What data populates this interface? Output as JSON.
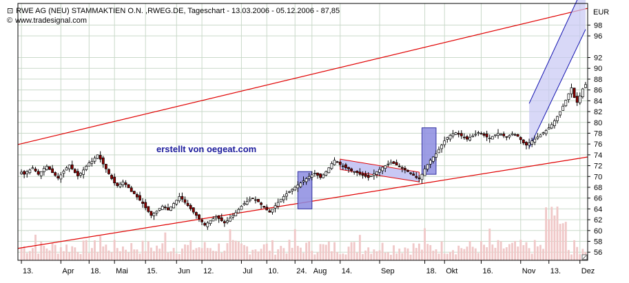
{
  "header": {
    "title": "RWE AG (NEU) STAMMAKTIEN O.N. ,RWEG.DE, Tageschart - 13.03.2006 - 05.12.2006 - 87,85",
    "source": "www.tradesignal.com",
    "title_icon": "square-chart-icon",
    "source_icon": "copyright-icon"
  },
  "annotation": "erstellt von oegeat.com",
  "colors": {
    "up_candle": "#ffffff",
    "down_candle": "#8b0000",
    "trend_line": "#e00000",
    "channel_line": "#1010b0",
    "channel_fill": "#c8c8f4",
    "box_fill": "#8c8ce0",
    "volume": "#f0c8c8",
    "grid": "#c9d9c9"
  },
  "chart_data": {
    "type": "candlestick",
    "currency": "EUR",
    "y_ticks": [
      56,
      58,
      60,
      62,
      64,
      66,
      68,
      70,
      72,
      74,
      76,
      78,
      80,
      82,
      84,
      86,
      88,
      90,
      92,
      96,
      98
    ],
    "ylim": [
      54.5,
      102
    ],
    "x_tick_labels": [
      "13.",
      "Apr",
      "18.",
      "Mai",
      "15.",
      "Jun",
      "12.",
      "Jul",
      "10.",
      "24.",
      "Aug",
      "14.",
      "Sep",
      "18.",
      "Okt",
      "16.",
      "Nov",
      "13.",
      "Dez"
    ],
    "x_tick_index": [
      0,
      14,
      24,
      33,
      44,
      55,
      64,
      78,
      87,
      97,
      103,
      113,
      127,
      143,
      150,
      163,
      177,
      187,
      198
    ],
    "num_days": 201,
    "grid": true,
    "closes": [
      70.8,
      70.4,
      70.9,
      71.2,
      71.6,
      71.0,
      70.4,
      70.9,
      71.5,
      71.9,
      71.3,
      70.7,
      70.2,
      69.7,
      70.3,
      71.0,
      71.6,
      72.1,
      71.4,
      70.7,
      70.1,
      70.6,
      71.2,
      71.9,
      72.5,
      72.8,
      73.4,
      74.0,
      73.2,
      72.3,
      71.4,
      70.5,
      69.6,
      68.8,
      68.3,
      68.6,
      69.0,
      68.5,
      67.9,
      67.2,
      66.8,
      66.2,
      65.6,
      65.0,
      64.2,
      63.5,
      62.8,
      63.2,
      63.6,
      64.1,
      64.5,
      64.2,
      63.8,
      64.4,
      65.0,
      65.6,
      66.3,
      65.8,
      65.2,
      64.6,
      64.0,
      63.4,
      62.8,
      62.2,
      61.6,
      61.0,
      61.4,
      61.8,
      62.2,
      62.6,
      62.2,
      61.8,
      61.4,
      61.8,
      62.3,
      62.8,
      63.3,
      63.9,
      64.5,
      65.0,
      65.4,
      65.8,
      66.0,
      65.7,
      65.3,
      64.8,
      64.3,
      63.8,
      63.4,
      64.0,
      64.6,
      65.2,
      65.8,
      66.3,
      66.8,
      67.2,
      67.6,
      68.0,
      68.4,
      68.8,
      69.2,
      69.6,
      70.0,
      70.3,
      70.6,
      70.2,
      69.8,
      70.3,
      70.9,
      71.6,
      72.4,
      73.0,
      72.6,
      72.2,
      71.9,
      71.6,
      71.4,
      71.1,
      70.9,
      70.7,
      70.4,
      70.2,
      70.0,
      69.8,
      70.1,
      70.5,
      70.9,
      71.3,
      71.7,
      72.0,
      72.3,
      72.6,
      72.4,
      72.1,
      71.8,
      71.5,
      71.2,
      70.9,
      70.6,
      70.2,
      69.8,
      69.6,
      70.4,
      71.4,
      72.2,
      73.0,
      73.6,
      74.2,
      75.0,
      75.8,
      76.6,
      77.2,
      77.6,
      77.9,
      78.1,
      77.8,
      77.5,
      77.2,
      76.9,
      77.2,
      77.5,
      77.8,
      78.1,
      77.9,
      77.6,
      77.3,
      77.1,
      77.4,
      77.7,
      78.0,
      77.8,
      77.5,
      77.3,
      77.6,
      77.9,
      77.7,
      77.4,
      76.8,
      76.2,
      75.8,
      76.2,
      76.6,
      76.9,
      77.3,
      77.7,
      78.1,
      78.5,
      79.0,
      79.6,
      80.3,
      81.1,
      82.0,
      83.0,
      84.1,
      85.3,
      86.4,
      84.6,
      83.7,
      84.9,
      86.2,
      87.0,
      87.5,
      87.85
    ]
  }
}
